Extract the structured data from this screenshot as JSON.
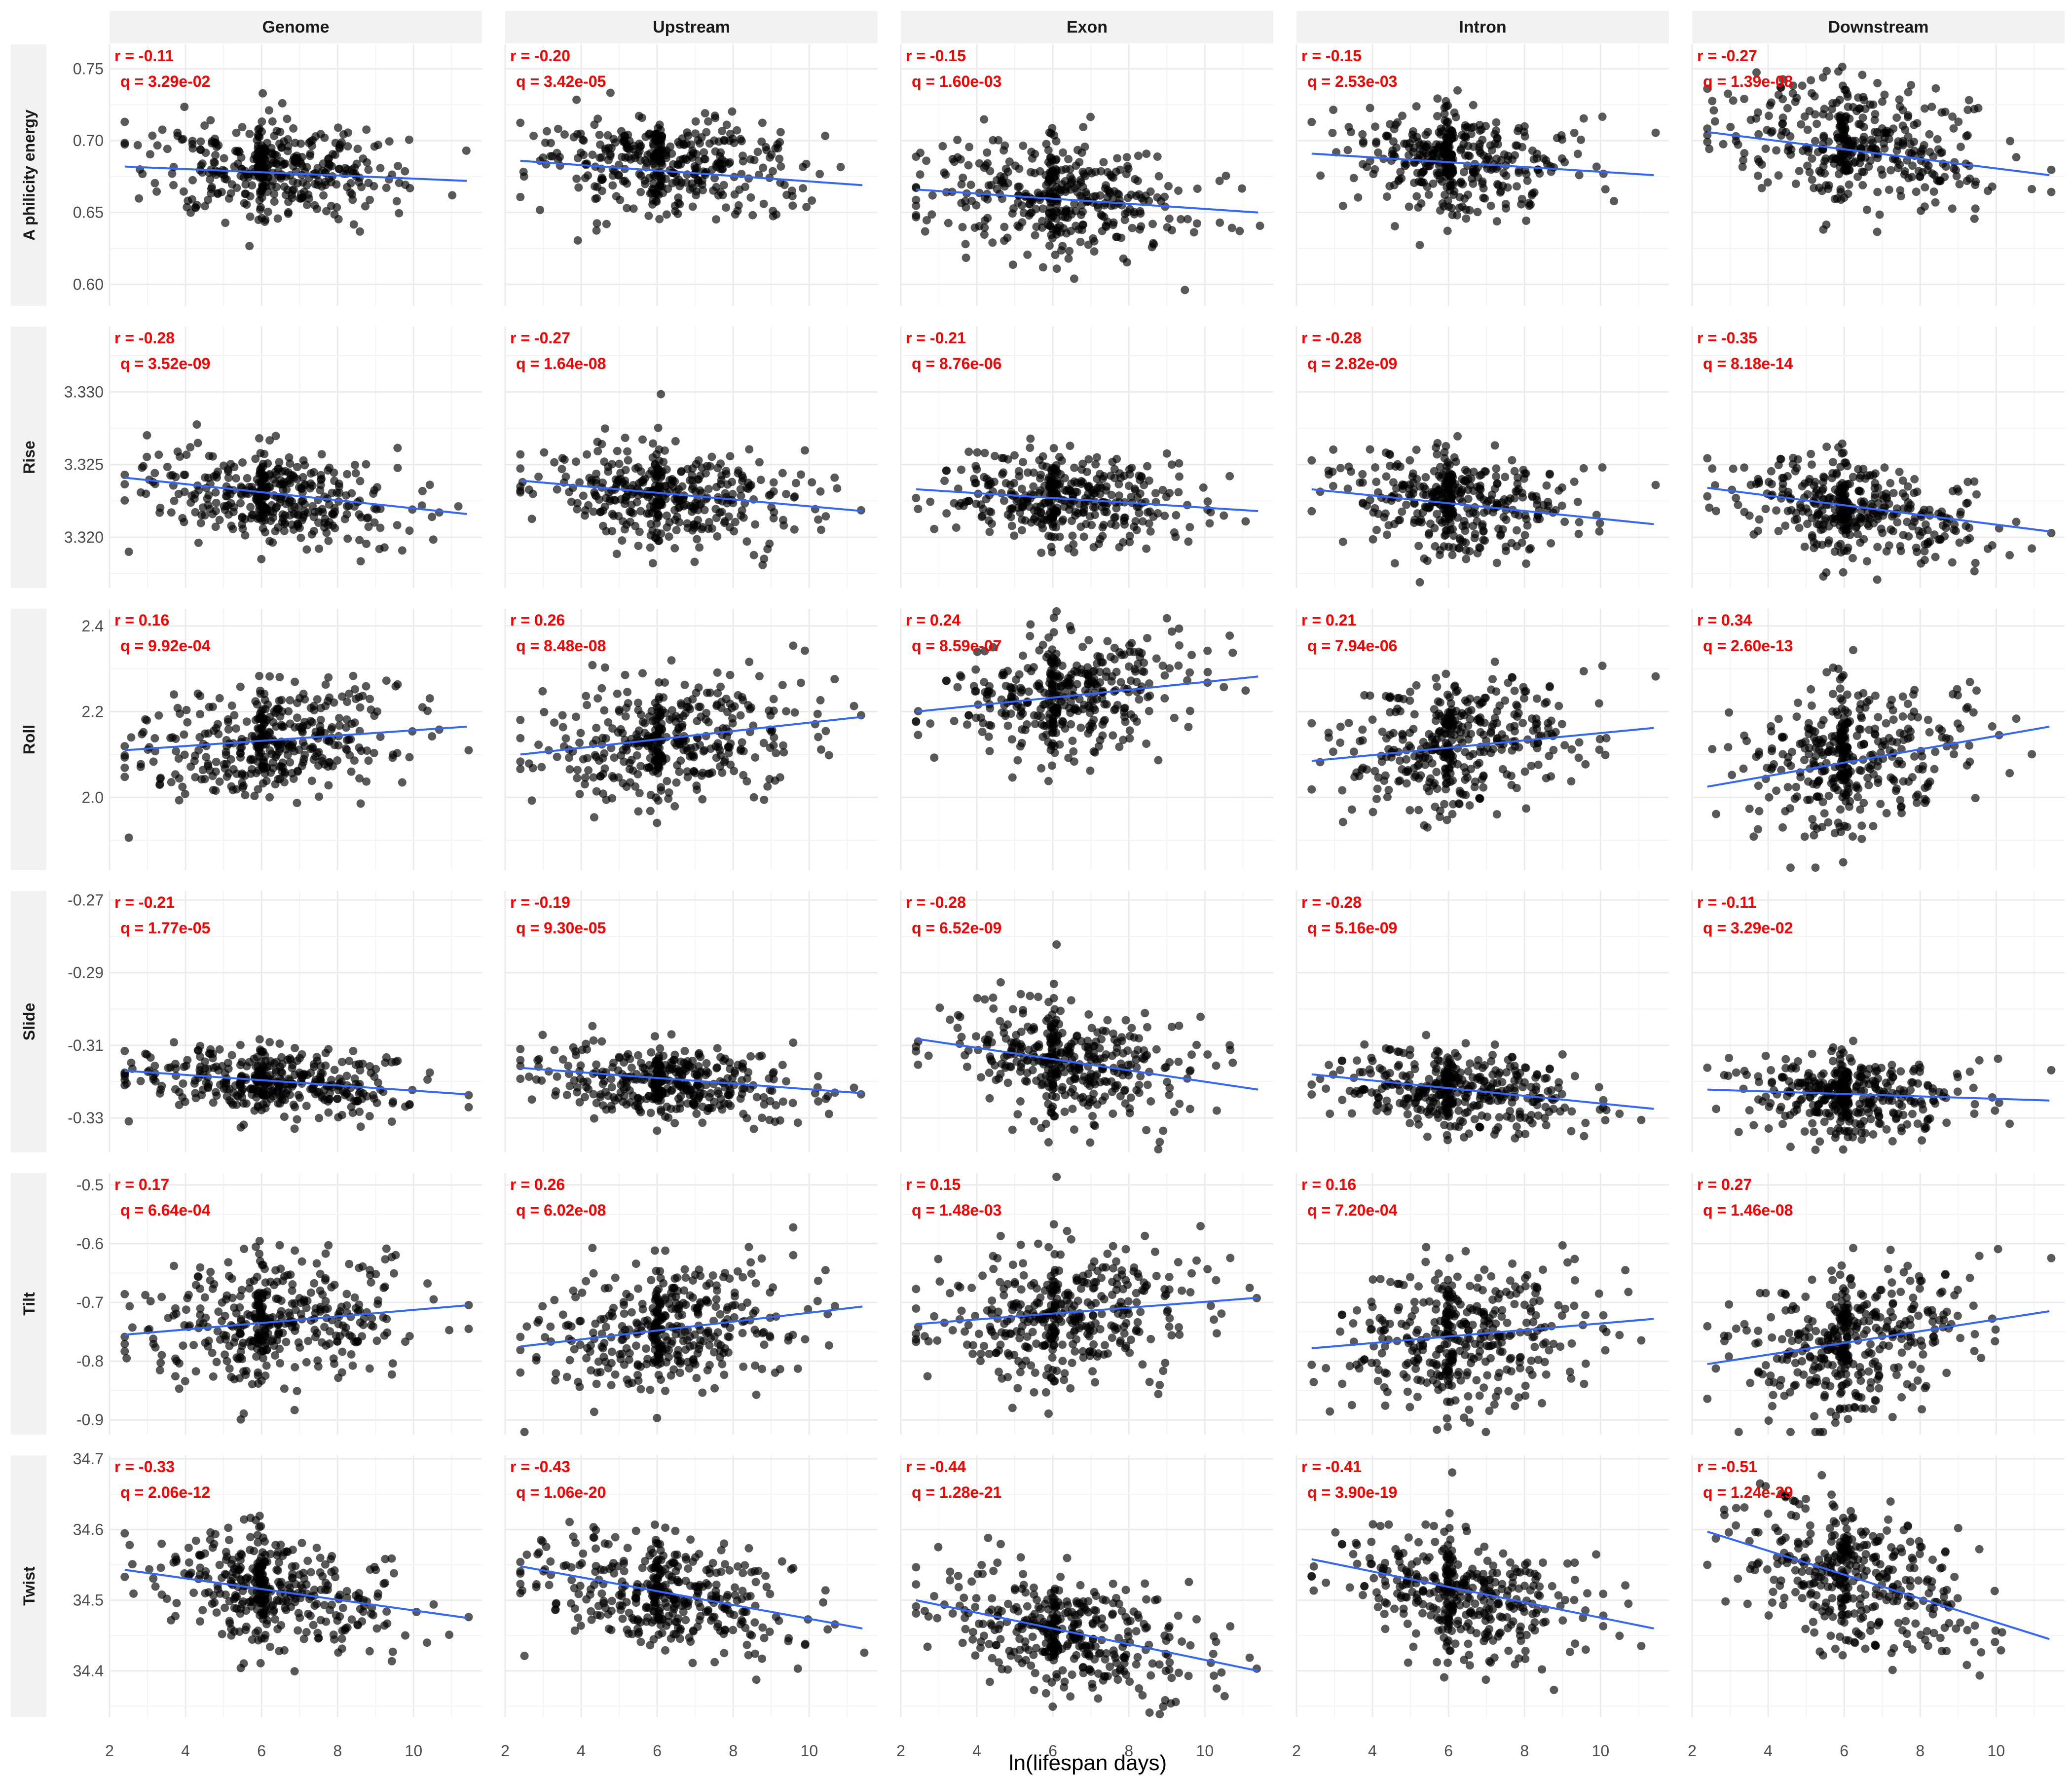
{
  "chart_data": {
    "type": "scatter",
    "xlabel": "ln(lifespan days)",
    "xlim": [
      2.0,
      11.8
    ],
    "x_ticks": [
      2,
      4,
      6,
      8,
      10
    ],
    "columns": [
      "Genome",
      "Upstream",
      "Exon",
      "Intron",
      "Downstream"
    ],
    "colors": {
      "points": "#000000",
      "fit_line": "#3366ff",
      "annotation": "#ff0000",
      "strip_bg": "#f2f2f2",
      "grid": "#ebebeb"
    },
    "rows": [
      {
        "label": "A philicity energy",
        "ylim": [
          0.585,
          0.767
        ],
        "y_ticks": [
          0.6,
          0.65,
          0.7,
          0.75
        ],
        "y_tick_labels": [
          "0.60",
          "0.65",
          "0.70",
          "0.75"
        ],
        "panels": [
          {
            "r": "-0.11",
            "q": "3.29e-02",
            "center": 0.68,
            "spread": 0.016,
            "fit": [
              [
                2.4,
                0.682
              ],
              [
                11.4,
                0.672
              ]
            ]
          },
          {
            "r": "-0.20",
            "q": "3.42e-05",
            "center": 0.683,
            "spread": 0.017,
            "fit": [
              [
                2.4,
                0.686
              ],
              [
                11.4,
                0.669
              ]
            ]
          },
          {
            "r": "-0.15",
            "q": "1.60e-03",
            "center": 0.661,
            "spread": 0.019,
            "fit": [
              [
                2.4,
                0.666
              ],
              [
                11.4,
                0.65
              ]
            ]
          },
          {
            "r": "-0.15",
            "q": "2.53e-03",
            "center": 0.685,
            "spread": 0.018,
            "fit": [
              [
                2.4,
                0.691
              ],
              [
                11.4,
                0.676
              ]
            ]
          },
          {
            "r": "-0.27",
            "q": "1.39e-08",
            "center": 0.697,
            "spread": 0.021,
            "fit": [
              [
                2.4,
                0.706
              ],
              [
                11.4,
                0.676
              ]
            ]
          }
        ]
      },
      {
        "label": "Rise",
        "ylim": [
          3.3165,
          3.3345
        ],
        "y_ticks": [
          3.32,
          3.325,
          3.33
        ],
        "y_tick_labels": [
          "3.320",
          "3.325",
          "3.330"
        ],
        "panels": [
          {
            "r": "-0.28",
            "q": "3.52e-09",
            "center": 3.3228,
            "spread": 0.0016,
            "fit": [
              [
                2.4,
                3.3241
              ],
              [
                11.4,
                3.3216
              ]
            ]
          },
          {
            "r": "-0.27",
            "q": "1.64e-08",
            "center": 3.3229,
            "spread": 0.0016,
            "fit": [
              [
                2.4,
                3.3239
              ],
              [
                11.4,
                3.3218
              ]
            ]
          },
          {
            "r": "-0.21",
            "q": "8.76e-06",
            "center": 3.3226,
            "spread": 0.0015,
            "fit": [
              [
                2.4,
                3.3233
              ],
              [
                11.4,
                3.3218
              ]
            ]
          },
          {
            "r": "-0.28",
            "q": "2.82e-09",
            "center": 3.3222,
            "spread": 0.0017,
            "fit": [
              [
                2.4,
                3.3233
              ],
              [
                11.4,
                3.3209
              ]
            ]
          },
          {
            "r": "-0.35",
            "q": "8.18e-14",
            "center": 3.322,
            "spread": 0.0017,
            "fit": [
              [
                2.4,
                3.3234
              ],
              [
                11.4,
                3.3204
              ]
            ]
          }
        ]
      },
      {
        "label": "Roll",
        "ylim": [
          1.83,
          2.44
        ],
        "y_ticks": [
          2.0,
          2.2,
          2.4
        ],
        "y_tick_labels": [
          "2.0",
          "2.2",
          "2.4"
        ],
        "panels": [
          {
            "r": "0.16",
            "q": "9.92e-04",
            "center": 2.13,
            "spread": 0.065,
            "fit": [
              [
                2.4,
                2.11
              ],
              [
                11.4,
                2.165
              ]
            ]
          },
          {
            "r": "0.26",
            "q": "8.48e-08",
            "center": 2.14,
            "spread": 0.07,
            "fit": [
              [
                2.4,
                2.1
              ],
              [
                11.4,
                2.188
              ]
            ]
          },
          {
            "r": "0.24",
            "q": "8.59e-07",
            "center": 2.24,
            "spread": 0.065,
            "fit": [
              [
                2.4,
                2.2
              ],
              [
                11.4,
                2.282
              ]
            ]
          },
          {
            "r": "0.21",
            "q": "7.94e-06",
            "center": 2.12,
            "spread": 0.075,
            "fit": [
              [
                2.4,
                2.085
              ],
              [
                11.4,
                2.162
              ]
            ]
          },
          {
            "r": "0.34",
            "q": "2.60e-13",
            "center": 2.1,
            "spread": 0.09,
            "fit": [
              [
                2.4,
                2.025
              ],
              [
                11.4,
                2.165
              ]
            ]
          }
        ]
      },
      {
        "label": "Slide",
        "ylim": [
          -0.3395,
          -0.2675
        ],
        "y_ticks": [
          -0.33,
          -0.31,
          -0.29,
          -0.27
        ],
        "y_tick_labels": [
          "-0.33",
          "-0.31",
          "-0.29",
          "-0.27"
        ],
        "panels": [
          {
            "r": "-0.21",
            "q": "1.77e-05",
            "center": -0.32,
            "spread": 0.0045,
            "fit": [
              [
                2.4,
                -0.317
              ],
              [
                11.4,
                -0.3235
              ]
            ]
          },
          {
            "r": "-0.19",
            "q": "9.30e-05",
            "center": -0.32,
            "spread": 0.005,
            "fit": [
              [
                2.4,
                -0.3162
              ],
              [
                11.4,
                -0.3232
              ]
            ]
          },
          {
            "r": "-0.28",
            "q": "6.52e-09",
            "center": -0.315,
            "spread": 0.0075,
            "fit": [
              [
                2.4,
                -0.3082
              ],
              [
                11.4,
                -0.3222
              ]
            ]
          },
          {
            "r": "-0.28",
            "q": "5.16e-09",
            "center": -0.323,
            "spread": 0.0055,
            "fit": [
              [
                2.4,
                -0.318
              ],
              [
                11.4,
                -0.3275
              ]
            ]
          },
          {
            "r": "-0.11",
            "q": "3.29e-02",
            "center": -0.324,
            "spread": 0.0055,
            "fit": [
              [
                2.4,
                -0.3222
              ],
              [
                11.4,
                -0.3252
              ]
            ]
          }
        ]
      },
      {
        "label": "Tilt",
        "ylim": [
          -0.925,
          -0.48
        ],
        "y_ticks": [
          -0.9,
          -0.8,
          -0.7,
          -0.6,
          -0.5
        ],
        "y_tick_labels": [
          "-0.9",
          "-0.8",
          "-0.7",
          "-0.6",
          "-0.5"
        ],
        "panels": [
          {
            "r": "0.17",
            "q": "6.64e-04",
            "center": -0.73,
            "spread": 0.055,
            "fit": [
              [
                2.4,
                -0.755
              ],
              [
                11.4,
                -0.705
              ]
            ]
          },
          {
            "r": "0.26",
            "q": "6.02e-08",
            "center": -0.74,
            "spread": 0.055,
            "fit": [
              [
                2.4,
                -0.775
              ],
              [
                11.4,
                -0.707
              ]
            ]
          },
          {
            "r": "0.15",
            "q": "1.48e-03",
            "center": -0.72,
            "spread": 0.055,
            "fit": [
              [
                2.4,
                -0.737
              ],
              [
                11.4,
                -0.692
              ]
            ]
          },
          {
            "r": "0.16",
            "q": "7.20e-04",
            "center": -0.76,
            "spread": 0.06,
            "fit": [
              [
                2.4,
                -0.778
              ],
              [
                11.4,
                -0.728
              ]
            ]
          },
          {
            "r": "0.27",
            "q": "1.46e-08",
            "center": -0.77,
            "spread": 0.06,
            "fit": [
              [
                2.4,
                -0.805
              ],
              [
                11.4,
                -0.715
              ]
            ]
          }
        ]
      },
      {
        "label": "Twist",
        "ylim": [
          34.335,
          34.705
        ],
        "y_ticks": [
          34.4,
          34.5,
          34.6,
          34.7
        ],
        "y_tick_labels": [
          "34.4",
          "34.5",
          "34.6",
          "34.7"
        ],
        "panels": [
          {
            "r": "-0.33",
            "q": "2.06e-12",
            "center": 34.515,
            "spread": 0.04,
            "fit": [
              [
                2.4,
                34.543
              ],
              [
                11.4,
                34.475
              ]
            ]
          },
          {
            "r": "-0.43",
            "q": "1.06e-20",
            "center": 34.505,
            "spread": 0.04,
            "fit": [
              [
                2.4,
                34.548
              ],
              [
                11.4,
                34.46
              ]
            ]
          },
          {
            "r": "-0.44",
            "q": "1.28e-21",
            "center": 34.455,
            "spread": 0.04,
            "fit": [
              [
                2.4,
                34.5
              ],
              [
                11.4,
                34.4
              ]
            ]
          },
          {
            "r": "-0.41",
            "q": "3.90e-19",
            "center": 34.505,
            "spread": 0.04,
            "fit": [
              [
                2.4,
                34.558
              ],
              [
                11.4,
                34.46
              ]
            ]
          },
          {
            "r": "-0.51",
            "q": "1.24e-29",
            "center": 34.525,
            "spread": 0.05,
            "fit": [
              [
                2.4,
                34.597
              ],
              [
                11.4,
                34.445
              ]
            ]
          }
        ]
      }
    ]
  }
}
